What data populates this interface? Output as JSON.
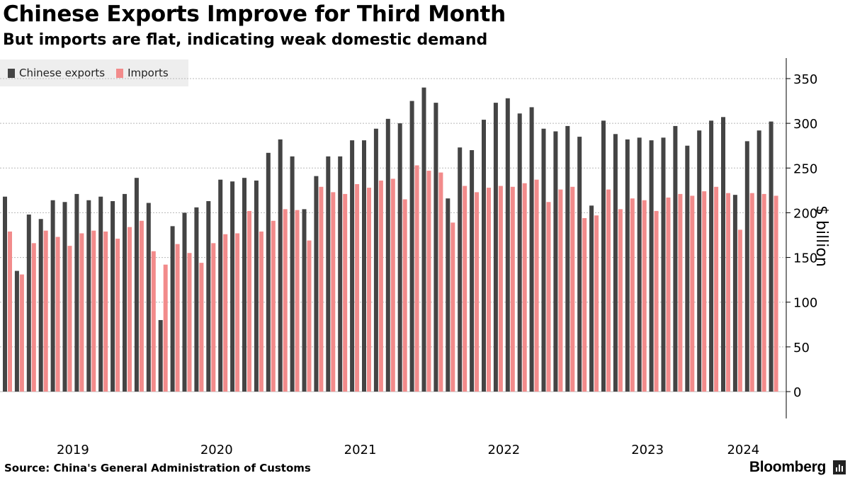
{
  "title": "Chinese Exports Improve for Third Month",
  "subtitle": "But imports are flat, indicating weak domestic demand",
  "legend": {
    "exports": "Chinese exports",
    "imports": "Imports"
  },
  "source": "Source: China's General Administration of Customs",
  "brand": "Bloomberg",
  "colors": {
    "exports": "#444444",
    "imports": "#f28b8b",
    "grid": "#b8b8b8",
    "legend_bg": "#eeeeee"
  },
  "chart_data": {
    "type": "bar",
    "title": "Chinese Exports Improve for Third Month",
    "ylabel": "$ billion",
    "xlabel": "",
    "ylim": [
      -30,
      370
    ],
    "yticks": [
      0,
      50,
      100,
      150,
      200,
      250,
      300,
      350
    ],
    "year_labels": [
      "2019",
      "2020",
      "2021",
      "2022",
      "2023",
      "2024"
    ],
    "year_label_positions": [
      5.5,
      17.5,
      29.5,
      41.5,
      53.5,
      61.5
    ],
    "months": [
      "2019-01",
      "2019-02",
      "2019-03",
      "2019-04",
      "2019-05",
      "2019-06",
      "2019-07",
      "2019-08",
      "2019-09",
      "2019-10",
      "2019-11",
      "2019-12",
      "2020-01",
      "2020-02",
      "2020-03",
      "2020-04",
      "2020-05",
      "2020-06",
      "2020-07",
      "2020-08",
      "2020-09",
      "2020-10",
      "2020-11",
      "2020-12",
      "2021-01",
      "2021-02",
      "2021-03",
      "2021-04",
      "2021-05",
      "2021-06",
      "2021-07",
      "2021-08",
      "2021-09",
      "2021-10",
      "2021-11",
      "2021-12",
      "2022-01",
      "2022-02",
      "2022-03",
      "2022-04",
      "2022-05",
      "2022-06",
      "2022-07",
      "2022-08",
      "2022-09",
      "2022-10",
      "2022-11",
      "2022-12",
      "2023-01",
      "2023-02",
      "2023-03",
      "2023-04",
      "2023-05",
      "2023-06",
      "2023-07",
      "2023-08",
      "2023-09",
      "2023-10",
      "2023-11",
      "2023-12",
      "2024-01",
      "2024-02",
      "2024-03",
      "2024-04",
      "2024-05"
    ],
    "series": [
      {
        "name": "Chinese exports",
        "values": [
          218,
          135,
          198,
          193,
          214,
          212,
          221,
          214,
          218,
          213,
          221,
          239,
          211,
          80,
          185,
          200,
          206,
          213,
          237,
          235,
          239,
          236,
          267,
          282,
          263,
          204,
          241,
          263,
          263,
          281,
          281,
          294,
          305,
          300,
          325,
          340,
          323,
          216,
          273,
          270,
          304,
          323,
          328,
          311,
          318,
          294,
          291,
          297,
          285,
          208,
          303,
          288,
          282,
          284,
          281,
          284,
          297,
          275,
          292,
          303,
          307,
          220,
          280,
          292,
          302
        ]
      },
      {
        "name": "Imports",
        "values": [
          179,
          131,
          166,
          180,
          173,
          163,
          177,
          180,
          179,
          171,
          184,
          191,
          157,
          142,
          165,
          155,
          144,
          166,
          176,
          177,
          202,
          179,
          191,
          204,
          203,
          169,
          229,
          223,
          221,
          232,
          228,
          236,
          238,
          215,
          253,
          247,
          245,
          189,
          230,
          223,
          228,
          230,
          229,
          233,
          237,
          212,
          226,
          229,
          194,
          197,
          226,
          204,
          216,
          214,
          202,
          217,
          221,
          219,
          224,
          229,
          222,
          181,
          222,
          221,
          219
        ]
      }
    ]
  }
}
